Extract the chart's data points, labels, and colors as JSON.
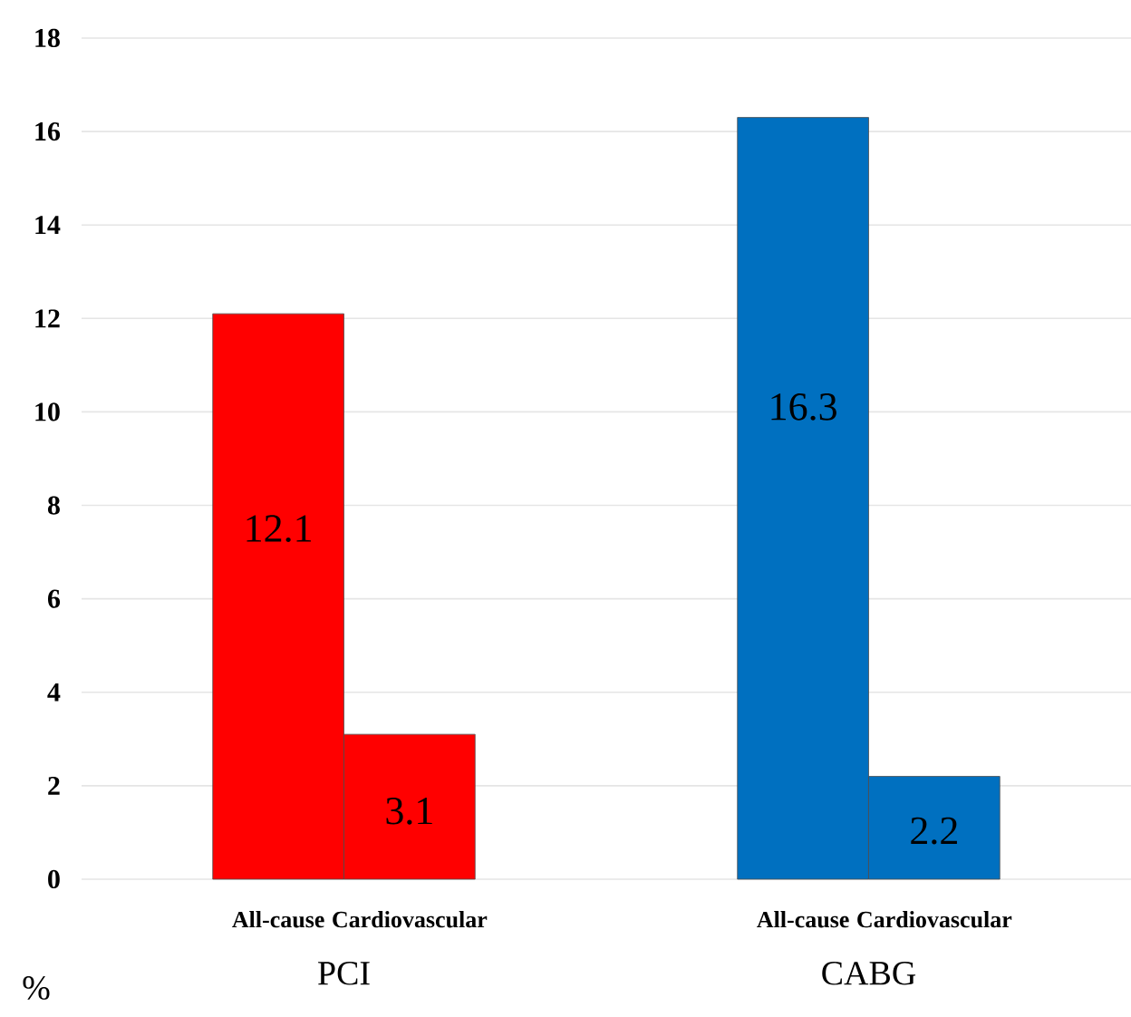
{
  "chart_data": {
    "type": "bar",
    "categories": [
      "All-cause",
      "Cardiovascular",
      "All-cause",
      "Cardiovascular"
    ],
    "values": [
      12.1,
      3.1,
      16.3,
      2.2
    ],
    "colors": [
      "#ff0000",
      "#ff0000",
      "#0070c0",
      "#0070c0"
    ],
    "ylim": [
      0,
      18
    ],
    "yticks": [
      0,
      2,
      4,
      6,
      8,
      10,
      12,
      14,
      16,
      18
    ],
    "ylabel": "%",
    "grid": "y",
    "data_labels": true,
    "annotations": [
      "PCI",
      "CABG"
    ]
  }
}
